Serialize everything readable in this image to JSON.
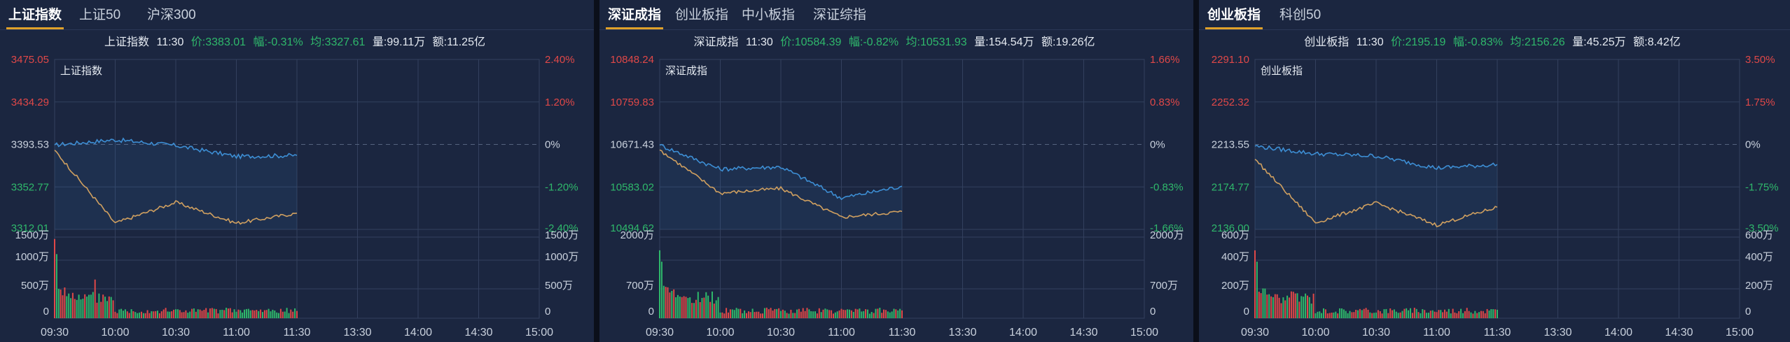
{
  "colors": {
    "background": "#1b2640",
    "grid": "#33405e",
    "up_red": "#e04848",
    "down_green": "#2fb86b",
    "neutral": "#c9d1dd",
    "price_line": "#3d8ed4",
    "avg_line": "#d0a060",
    "active_tab_underline": "#e0a12a"
  },
  "time_labels": [
    "09:30",
    "10:00",
    "10:30",
    "11:00",
    "11:30",
    "13:30",
    "14:00",
    "14:30",
    "15:00"
  ],
  "panels": [
    {
      "tabs": [
        {
          "label": "上证指数",
          "active": true
        },
        {
          "label": "上证50",
          "active": false
        },
        {
          "label": "沪深300",
          "active": false
        }
      ],
      "info": {
        "name": "上证指数",
        "time": "11:30",
        "price": "价:3383.01",
        "change": "幅:-0.31%",
        "avg": "均:3327.61",
        "volume": "量:99.11万",
        "amount": "额:11.25亿"
      },
      "price_axis_left": [
        "3475.05",
        "3434.29",
        "3393.53",
        "3352.77",
        "3312.01"
      ],
      "price_axis_right": [
        "2.40%",
        "1.20%",
        "0%",
        "-1.20%",
        "-2.40%"
      ],
      "vol_axis_left": [
        "1500万",
        "1000万",
        "500万",
        "0"
      ],
      "vol_axis_right": [
        "1500万",
        "1000万",
        "500万",
        "0"
      ],
      "legend": "上证指数"
    },
    {
      "tabs": [
        {
          "label": "深证成指",
          "active": true
        },
        {
          "label": "创业板指",
          "active": false
        },
        {
          "label": "中小板指",
          "active": false
        },
        {
          "label": "深证综指",
          "active": false
        }
      ],
      "info": {
        "name": "深证成指",
        "time": "11:30",
        "price": "价:10584.39",
        "change": "幅:-0.82%",
        "avg": "均:10531.93",
        "volume": "量:154.54万",
        "amount": "额:19.26亿"
      },
      "price_axis_left": [
        "10848.24",
        "10759.83",
        "10671.43",
        "10583.02",
        "10494.62"
      ],
      "price_axis_right": [
        "1.66%",
        "0.83%",
        "0%",
        "-0.83%",
        "-1.66%"
      ],
      "vol_axis_left": [
        "2000万",
        "700万",
        "0"
      ],
      "vol_axis_right": [
        "2000万",
        "700万",
        "0"
      ],
      "legend": "深证成指"
    },
    {
      "tabs": [
        {
          "label": "创业板指",
          "active": true
        },
        {
          "label": "科创50",
          "active": false
        }
      ],
      "info": {
        "name": "创业板指",
        "time": "11:30",
        "price": "价:2195.19",
        "change": "幅:-0.83%",
        "avg": "均:2156.26",
        "volume": "量:45.25万",
        "amount": "额:8.42亿"
      },
      "price_axis_left": [
        "2291.10",
        "2252.32",
        "2213.55",
        "2174.77",
        "2136.00"
      ],
      "price_axis_right": [
        "3.50%",
        "1.75%",
        "0%",
        "-1.75%",
        "-3.50%"
      ],
      "vol_axis_left": [
        "600万",
        "400万",
        "200万",
        "0"
      ],
      "vol_axis_right": [
        "600万",
        "400万",
        "200万",
        "0"
      ],
      "legend": "创业板指"
    }
  ],
  "chart_data": [
    {
      "type": "line",
      "title": "上证指数",
      "x": [
        "09:30",
        "10:00",
        "10:30",
        "11:00",
        "11:30"
      ],
      "series": [
        {
          "name": "价",
          "values": [
            3393.0,
            3398.0,
            3392.5,
            3382.0,
            3383.0
          ]
        },
        {
          "name": "均",
          "values": [
            3388.0,
            3318.0,
            3338.0,
            3318.0,
            3327.6
          ]
        }
      ],
      "ylim": [
        3312.01,
        3475.05
      ],
      "volume": {
        "unit": "万",
        "ylim": [
          0,
          1500
        ]
      }
    },
    {
      "type": "line",
      "title": "深证成指",
      "x": [
        "09:30",
        "10:00",
        "10:30",
        "11:00",
        "11:30"
      ],
      "series": [
        {
          "name": "价",
          "values": [
            10670.0,
            10620.0,
            10625.0,
            10560.0,
            10584.4
          ]
        },
        {
          "name": "均",
          "values": [
            10660.0,
            10570.0,
            10580.0,
            10520.0,
            10531.9
          ]
        }
      ],
      "ylim": [
        10494.62,
        10848.24
      ],
      "volume": {
        "unit": "万",
        "ylim": [
          0,
          2000
        ]
      }
    },
    {
      "type": "line",
      "title": "创业板指",
      "x": [
        "09:30",
        "10:00",
        "10:30",
        "11:00",
        "11:30"
      ],
      "series": [
        {
          "name": "价",
          "values": [
            2212.0,
            2205.0,
            2203.0,
            2192.0,
            2195.2
          ]
        },
        {
          "name": "均",
          "values": [
            2200.0,
            2142.0,
            2160.0,
            2140.0,
            2156.3
          ]
        }
      ],
      "ylim": [
        2136.0,
        2291.1
      ],
      "volume": {
        "unit": "万",
        "ylim": [
          0,
          600
        ]
      }
    }
  ]
}
